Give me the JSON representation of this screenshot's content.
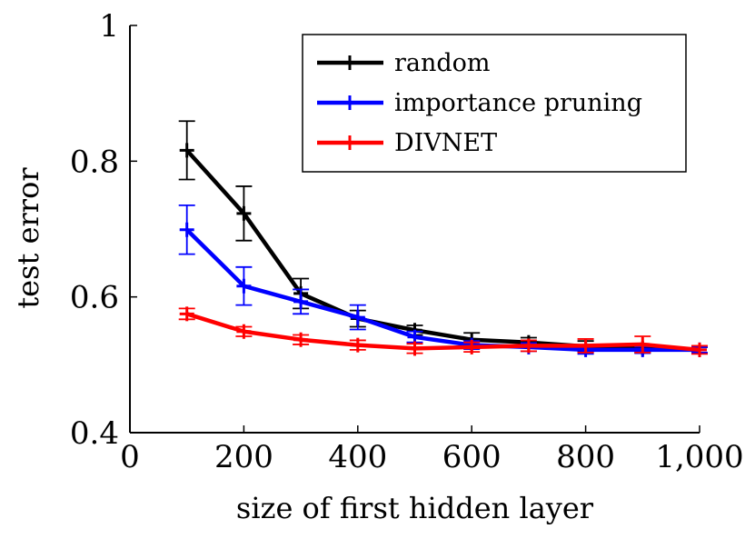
{
  "chart_data": {
    "type": "line",
    "title": "",
    "xlabel": "size of first hidden layer",
    "ylabel": "test error",
    "xlim": [
      0,
      1000
    ],
    "ylim": [
      0.4,
      1
    ],
    "xticks": [
      0,
      200,
      400,
      600,
      800,
      1000
    ],
    "xtick_labels": [
      "0",
      "200",
      "400",
      "600",
      "800",
      "1,000"
    ],
    "yticks": [
      0.4,
      0.6,
      0.8,
      1
    ],
    "ytick_labels": [
      "0.4",
      "0.6",
      "0.8",
      "1"
    ],
    "grid": false,
    "legend_position": "top-right",
    "x": [
      100,
      200,
      300,
      400,
      500,
      600,
      700,
      800,
      900,
      1000
    ],
    "series": [
      {
        "name": "random",
        "color": "#000000",
        "values": [
          0.816,
          0.723,
          0.605,
          0.568,
          0.551,
          0.537,
          0.533,
          0.527,
          0.524,
          0.522
        ],
        "errors": [
          0.043,
          0.04,
          0.022,
          0.012,
          0.007,
          0.01,
          0.007,
          0.008,
          0.006,
          0.004
        ]
      },
      {
        "name": "importance pruning",
        "color": "#0000ff",
        "values": [
          0.699,
          0.616,
          0.593,
          0.57,
          0.541,
          0.529,
          0.526,
          0.522,
          0.522,
          0.522
        ],
        "errors": [
          0.036,
          0.028,
          0.018,
          0.018,
          0.008,
          0.006,
          0.006,
          0.006,
          0.005,
          0.004
        ]
      },
      {
        "name": "DIVNET",
        "color": "#ff0000",
        "values": [
          0.575,
          0.549,
          0.537,
          0.529,
          0.524,
          0.526,
          0.528,
          0.528,
          0.53,
          0.522
        ],
        "errors": [
          0.008,
          0.007,
          0.007,
          0.007,
          0.007,
          0.007,
          0.008,
          0.01,
          0.012,
          0.006
        ]
      }
    ]
  }
}
